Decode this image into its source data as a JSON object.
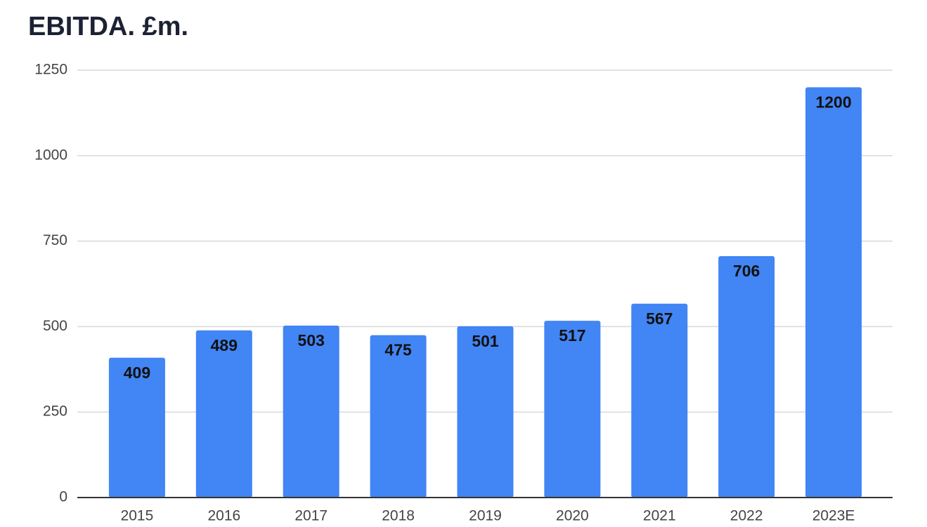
{
  "chart_data": {
    "type": "bar",
    "title": "EBITDA. £m.",
    "categories": [
      "2015",
      "2016",
      "2017",
      "2018",
      "2019",
      "2020",
      "2021",
      "2022",
      "2023E"
    ],
    "values": [
      409,
      489,
      503,
      475,
      501,
      517,
      567,
      706,
      1200
    ],
    "color": "#4285f4",
    "ylim": [
      0,
      1250
    ],
    "yticks": [
      0,
      250,
      500,
      750,
      1000,
      1250
    ],
    "grid": true
  }
}
